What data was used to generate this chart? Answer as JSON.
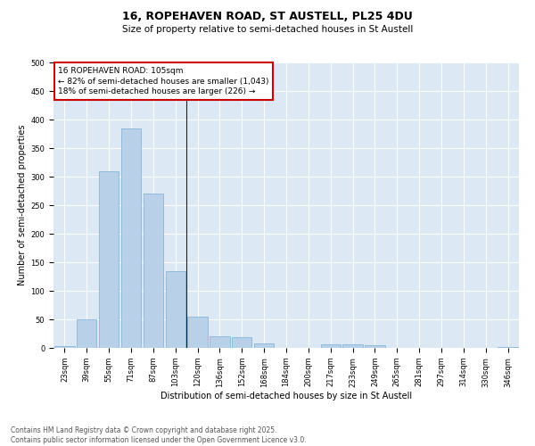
{
  "title1": "16, ROPEHAVEN ROAD, ST AUSTELL, PL25 4DU",
  "title2": "Size of property relative to semi-detached houses in St Austell",
  "xlabel": "Distribution of semi-detached houses by size in St Austell",
  "ylabel": "Number of semi-detached properties",
  "categories": [
    "23sqm",
    "39sqm",
    "55sqm",
    "71sqm",
    "87sqm",
    "103sqm",
    "120sqm",
    "136sqm",
    "152sqm",
    "168sqm",
    "184sqm",
    "200sqm",
    "217sqm",
    "233sqm",
    "249sqm",
    "265sqm",
    "281sqm",
    "297sqm",
    "314sqm",
    "330sqm",
    "346sqm"
  ],
  "values": [
    3,
    50,
    310,
    385,
    270,
    135,
    55,
    20,
    18,
    8,
    0,
    0,
    6,
    7,
    5,
    0,
    0,
    0,
    0,
    0,
    2
  ],
  "bar_color": "#b8d0e8",
  "bar_edge_color": "#7aafd4",
  "property_index": 5,
  "property_label": "16 ROPEHAVEN ROAD: 105sqm",
  "pct_smaller": "82%",
  "count_smaller": "1,043",
  "pct_larger": "18%",
  "count_larger": "226",
  "annotation_box_color": "#cc0000",
  "ylim": [
    0,
    500
  ],
  "yticks": [
    0,
    50,
    100,
    150,
    200,
    250,
    300,
    350,
    400,
    450,
    500
  ],
  "background_color": "#dce9f5",
  "footer1": "Contains HM Land Registry data © Crown copyright and database right 2025.",
  "footer2": "Contains public sector information licensed under the Open Government Licence v3.0.",
  "title1_fontsize": 9,
  "title2_fontsize": 7.5,
  "xlabel_fontsize": 7,
  "ylabel_fontsize": 7,
  "tick_fontsize": 6,
  "annot_fontsize": 6.5,
  "footer_fontsize": 5.5
}
